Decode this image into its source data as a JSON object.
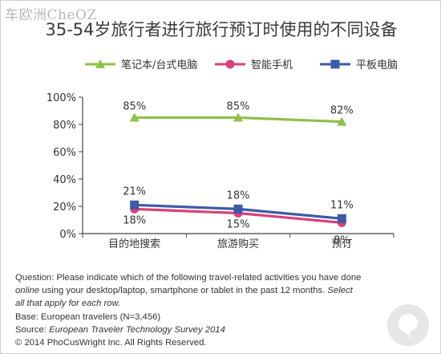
{
  "watermark": "车欧洲CheOZ",
  "chart_data": {
    "type": "line",
    "title": "35-54岁旅行者进行旅行预订时使用的不同设备",
    "categories": [
      "目的地搜索",
      "旅游购买",
      "预订"
    ],
    "ylim": [
      0,
      100
    ],
    "yticks": [
      0,
      20,
      40,
      60,
      80,
      100
    ],
    "ytick_labels": [
      "0%",
      "20%",
      "40%",
      "60%",
      "80%",
      "100%"
    ],
    "legend_position": "top",
    "grid": false,
    "series": [
      {
        "name": "笔记本/台式电脑",
        "values": [
          85,
          85,
          82
        ],
        "labels": [
          "85%",
          "85%",
          "82%"
        ],
        "color": "#8dc14a",
        "marker": "triangle"
      },
      {
        "name": "智能手机",
        "values": [
          18,
          15,
          8
        ],
        "labels": [
          "18%",
          "15%",
          "8%"
        ],
        "color": "#d9417a",
        "marker": "circle"
      },
      {
        "name": "平板电脑",
        "values": [
          21,
          18,
          11
        ],
        "labels": [
          "21%",
          "18%",
          "11%"
        ],
        "color": "#3d5aa8",
        "marker": "square"
      }
    ]
  },
  "notes": {
    "q1": "Question: Please indicate which of the following travel-related activities you have done",
    "q2a": "online",
    "q2b": " using your desktop/laptop, smartphone or tablet in the past 12 months. ",
    "q2c": "Select",
    "q3": "all that apply for each row.",
    "base": "Base: European travelers (N=3,456)",
    "source_prefix": "Source: ",
    "source_title": "European Traveler Technology Survey 2014",
    "copyright": "© 2014 PhoCusWright Inc. All Rights Reserved."
  }
}
